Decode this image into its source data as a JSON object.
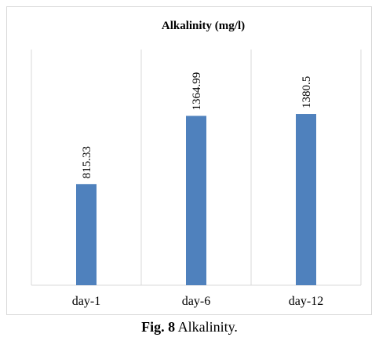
{
  "chart_data": {
    "type": "bar",
    "title": "Alkalinity (mg/l)",
    "categories": [
      "day-1",
      "day-6",
      "day-12"
    ],
    "values": [
      815.33,
      1364.99,
      1380.5
    ],
    "data_labels": [
      "815.33",
      "1364.99",
      "1380.5"
    ],
    "ylim": [
      0,
      1900
    ],
    "grid": "vertical separators",
    "colors": {
      "bar": "#4f81bd",
      "grid": "#d9d9d9"
    }
  },
  "caption": {
    "label": "Fig. 8",
    "text": "Alkalinity."
  }
}
